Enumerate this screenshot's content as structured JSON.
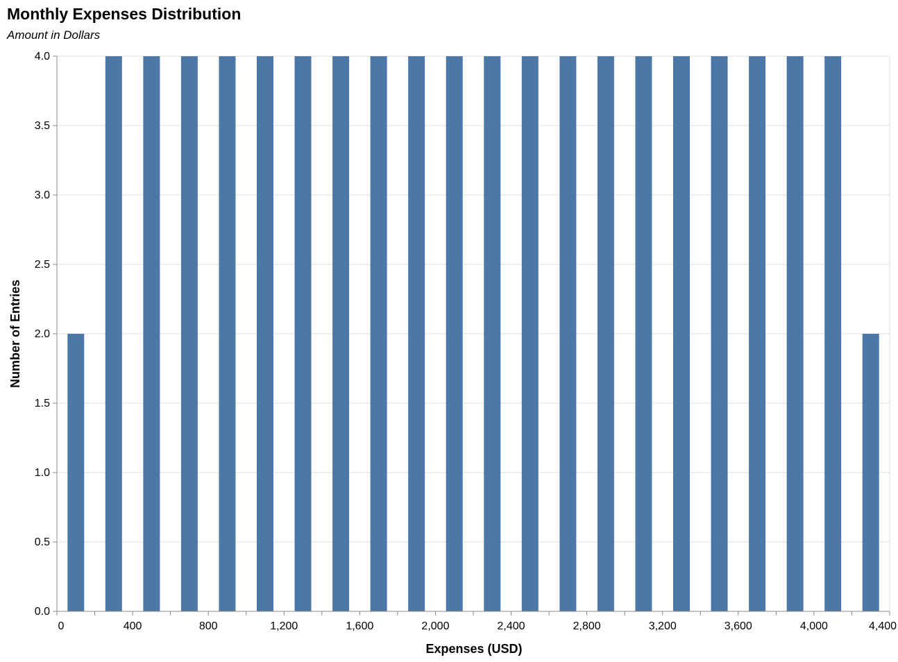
{
  "chart_data": {
    "type": "bar",
    "title": "Monthly Expenses Distribution",
    "subtitle": "Amount in Dollars",
    "xlabel": "Expenses (USD)",
    "ylabel": "Number of Entries",
    "xlim": [
      0,
      4400
    ],
    "ylim": [
      0,
      4
    ],
    "x_ticks": [
      "0",
      "400",
      "800",
      "1,200",
      "1,600",
      "2,000",
      "2,400",
      "2,800",
      "3,200",
      "3,600",
      "4,000",
      "4,400"
    ],
    "y_ticks": [
      "0.0",
      "0.5",
      "1.0",
      "1.5",
      "2.0",
      "2.5",
      "3.0",
      "3.5",
      "4.0"
    ],
    "bars": [
      {
        "x": 100,
        "value": 2
      },
      {
        "x": 300,
        "value": 4
      },
      {
        "x": 500,
        "value": 4
      },
      {
        "x": 700,
        "value": 4
      },
      {
        "x": 900,
        "value": 4
      },
      {
        "x": 1100,
        "value": 4
      },
      {
        "x": 1300,
        "value": 4
      },
      {
        "x": 1500,
        "value": 4
      },
      {
        "x": 1700,
        "value": 4
      },
      {
        "x": 1900,
        "value": 4
      },
      {
        "x": 2100,
        "value": 4
      },
      {
        "x": 2300,
        "value": 4
      },
      {
        "x": 2500,
        "value": 4
      },
      {
        "x": 2700,
        "value": 4
      },
      {
        "x": 2900,
        "value": 4
      },
      {
        "x": 3100,
        "value": 4
      },
      {
        "x": 3300,
        "value": 4
      },
      {
        "x": 3500,
        "value": 4
      },
      {
        "x": 3700,
        "value": 4
      },
      {
        "x": 3900,
        "value": 4
      },
      {
        "x": 4100,
        "value": 4
      },
      {
        "x": 4300,
        "value": 2
      }
    ],
    "bar_color": "#4c78a8",
    "grid": true
  }
}
